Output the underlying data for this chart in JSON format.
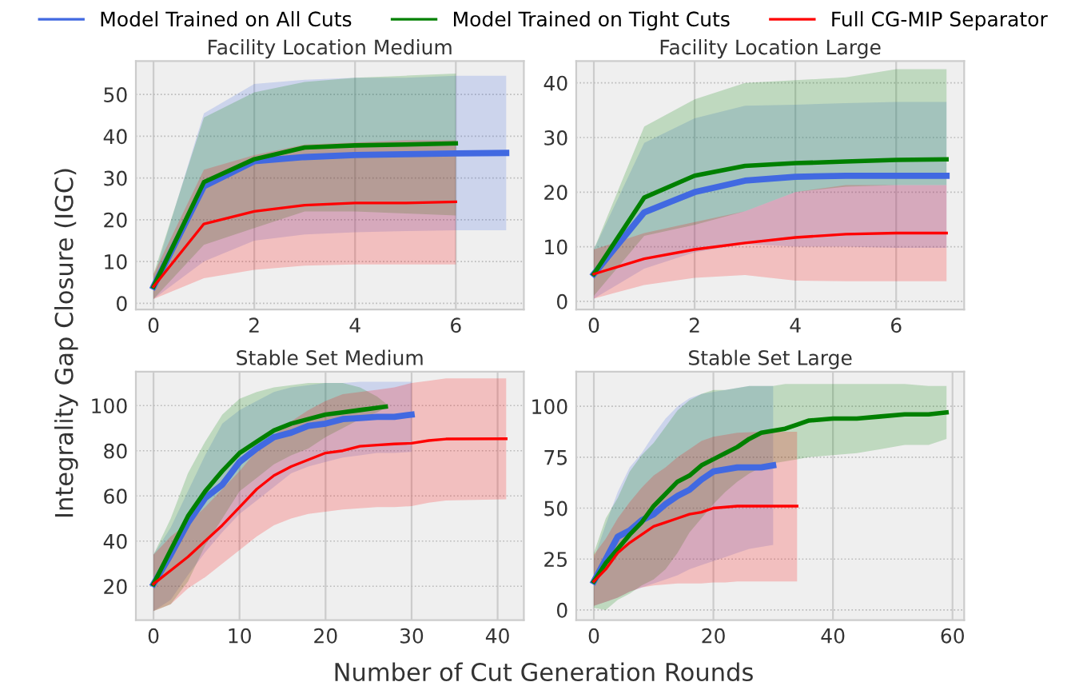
{
  "chart_data": [
    {
      "type": "line",
      "title": "Facility Location Medium",
      "ylabel": "Integrality Gap Closure (IGC)",
      "legend": "top",
      "grid": true,
      "xlim": [
        -0.35,
        7.35
      ],
      "xticks": [
        0,
        2,
        4,
        6
      ],
      "ylim": [
        -1.5,
        58
      ],
      "yticks": [
        0,
        10,
        20,
        30,
        40,
        50
      ],
      "series": [
        {
          "name": "Model Trained on All Cuts",
          "color": "#4169e1",
          "x": [
            0,
            1,
            2,
            3,
            4,
            5,
            6,
            7
          ],
          "values": [
            4,
            28,
            34,
            35,
            35.5,
            35.7,
            35.9,
            36
          ],
          "lower": [
            1,
            10,
            15,
            16.5,
            17,
            17.3,
            17.5,
            17.5
          ],
          "upper": [
            6,
            45.5,
            52.5,
            53.5,
            54,
            54,
            54.5,
            54.5
          ]
        },
        {
          "name": "Model Trained on Tight Cuts",
          "color": "#008000",
          "x": [
            0,
            1,
            2,
            3,
            4,
            5,
            6
          ],
          "values": [
            4,
            29,
            34.5,
            37.3,
            37.8,
            38,
            38.3
          ],
          "lower": [
            1,
            14,
            18,
            22,
            22,
            21.5,
            21
          ],
          "upper": [
            7,
            44.5,
            50.5,
            53,
            54,
            54.5,
            55
          ]
        },
        {
          "name": "Full CG-MIP Separator",
          "color": "#ff0000",
          "x": [
            0,
            1,
            2,
            3,
            4,
            5,
            6
          ],
          "values": [
            4,
            19,
            22,
            23.5,
            24,
            24,
            24.3
          ],
          "lower": [
            1,
            6,
            8,
            9,
            9.3,
            9.3,
            9.3
          ],
          "upper": [
            7,
            32,
            35.5,
            38,
            38.5,
            39,
            39
          ]
        }
      ]
    },
    {
      "type": "line",
      "title": "Facility Location Large",
      "grid": true,
      "xlim": [
        -0.35,
        7.35
      ],
      "xticks": [
        0,
        2,
        4,
        6
      ],
      "ylim": [
        -1.5,
        44
      ],
      "yticks": [
        0,
        10,
        20,
        30,
        40
      ],
      "series": [
        {
          "name": "Model Trained on All Cuts",
          "color": "#4169e1",
          "x": [
            0,
            1,
            2,
            3,
            4,
            5,
            6,
            7
          ],
          "values": [
            5,
            16.3,
            20,
            22.1,
            22.8,
            23,
            23,
            23
          ],
          "lower": [
            0.5,
            6,
            9,
            10.5,
            10,
            10,
            9.8,
            9.8
          ],
          "upper": [
            9.5,
            29,
            33.5,
            35.8,
            36,
            36.3,
            36.5,
            36.5
          ]
        },
        {
          "name": "Model Trained on Tight Cuts",
          "color": "#008000",
          "x": [
            0,
            1,
            2,
            3,
            4,
            5,
            6,
            7
          ],
          "values": [
            5,
            19,
            23,
            24.8,
            25.3,
            25.6,
            25.9,
            26
          ],
          "lower": [
            1,
            12,
            14,
            16.5,
            20,
            21,
            21.3,
            21.3
          ],
          "upper": [
            9.5,
            32,
            37,
            40,
            40.5,
            41,
            42.5,
            42.5
          ]
        },
        {
          "name": "Full CG-MIP Separator",
          "color": "#ff0000",
          "x": [
            0,
            1,
            2,
            3,
            4,
            5,
            6,
            7
          ],
          "values": [
            5,
            7.8,
            9.5,
            10.7,
            11.7,
            12.3,
            12.5,
            12.5
          ],
          "lower": [
            0.5,
            3,
            4.3,
            4.8,
            3.8,
            3.7,
            3.7,
            3.7
          ],
          "upper": [
            9.5,
            12.5,
            14.5,
            16.5,
            20,
            21.3,
            21.3,
            21.3
          ]
        }
      ]
    },
    {
      "type": "line",
      "title": "Stable Set Medium",
      "xlabel": "Number of Cut Generation Rounds",
      "grid": true,
      "xlim": [
        -2.05,
        43.05
      ],
      "xticks": [
        0,
        10,
        20,
        30,
        40
      ],
      "ylim": [
        5,
        115
      ],
      "yticks": [
        20,
        40,
        60,
        80,
        100
      ],
      "series": [
        {
          "name": "Model Trained on All Cuts",
          "color": "#4169e1",
          "x": [
            0,
            2,
            4,
            6,
            8,
            10,
            12,
            14,
            16,
            18,
            20,
            22,
            24,
            26,
            28,
            30
          ],
          "values": [
            21,
            34,
            48,
            59,
            65,
            75,
            81,
            86,
            88,
            91,
            92,
            94,
            94.5,
            95,
            95,
            96
          ],
          "lower": [
            9,
            14,
            25,
            35,
            44,
            52,
            58,
            64,
            70,
            73,
            75,
            77,
            78,
            79,
            79,
            79.5
          ],
          "upper": [
            34,
            46,
            62,
            78,
            92,
            98,
            102,
            106,
            108,
            109,
            110,
            110,
            110.5,
            110.5,
            110.5,
            110.5
          ]
        },
        {
          "name": "Model Trained on Tight Cuts",
          "color": "#008000",
          "x": [
            0,
            2,
            4,
            6,
            8,
            10,
            12,
            14,
            16,
            18,
            20,
            22,
            24,
            26,
            27
          ],
          "values": [
            21,
            36,
            51,
            62,
            71,
            79,
            84,
            89,
            92,
            94,
            96,
            97,
            98,
            99,
            99.5
          ],
          "lower": [
            9,
            12,
            22,
            38,
            50,
            62,
            68,
            74,
            78,
            81,
            86,
            90,
            94,
            97,
            99
          ],
          "upper": [
            34,
            50,
            70,
            84,
            96,
            103,
            106,
            108,
            109,
            110,
            110,
            110,
            108,
            104,
            101
          ]
        },
        {
          "name": "Full CG-MIP Separator",
          "color": "#ff0000",
          "x": [
            0,
            2,
            4,
            6,
            8,
            10,
            12,
            14,
            16,
            18,
            20,
            22,
            24,
            26,
            28,
            30,
            32,
            34,
            41
          ],
          "values": [
            21,
            27,
            33,
            40,
            47,
            55,
            63,
            69,
            73,
            76,
            79,
            80,
            82,
            82.5,
            83,
            83.3,
            84.5,
            85.2,
            85.3
          ],
          "lower": [
            9,
            12,
            19,
            24,
            30,
            36,
            42,
            47,
            50,
            52,
            53,
            54,
            54.5,
            55,
            55,
            55.5,
            57,
            58,
            58.5
          ],
          "upper": [
            34,
            42,
            48,
            55,
            63,
            71,
            80,
            87,
            93,
            98,
            102,
            105,
            106,
            107,
            108,
            110,
            111,
            112,
            112
          ]
        }
      ]
    },
    {
      "type": "line",
      "title": "Stable Set Large",
      "grid": true,
      "xlim": [
        -2.95,
        61.95
      ],
      "xticks": [
        0,
        20,
        40,
        60
      ],
      "ylim": [
        -5,
        117
      ],
      "yticks": [
        0,
        25,
        50,
        75,
        100
      ],
      "series": [
        {
          "name": "Model Trained on All Cuts",
          "color": "#4169e1",
          "x": [
            0,
            2,
            4,
            6,
            8,
            10,
            12,
            14,
            16,
            18,
            20,
            22,
            24,
            26,
            28,
            30
          ],
          "values": [
            14,
            25,
            36,
            39,
            44,
            47,
            52,
            56,
            59,
            64,
            68,
            69,
            70,
            70,
            70,
            71
          ],
          "lower": [
            2,
            4,
            6,
            9,
            11,
            13,
            15,
            17,
            20,
            22,
            24,
            26,
            28,
            30,
            31,
            32
          ],
          "upper": [
            25,
            42,
            58,
            70,
            77,
            86,
            94,
            100,
            104,
            106,
            107,
            108,
            109,
            110,
            110,
            110
          ]
        },
        {
          "name": "Model Trained on Tight Cuts",
          "color": "#008000",
          "x": [
            0,
            2,
            4,
            6,
            8,
            10,
            12,
            14,
            16,
            18,
            20,
            22,
            24,
            26,
            28,
            30,
            32,
            34,
            36,
            40,
            44,
            48,
            52,
            56,
            59
          ],
          "values": [
            14,
            23,
            30,
            37,
            43,
            51,
            57,
            63,
            66,
            71,
            74,
            77,
            80,
            84,
            87,
            88,
            89,
            91,
            93,
            94,
            94,
            95,
            96,
            96,
            97
          ],
          "lower": [
            1,
            0,
            5,
            8,
            12,
            15,
            20,
            28,
            38,
            45,
            52,
            58,
            63,
            67,
            70,
            72,
            73,
            74,
            75,
            76,
            77,
            79,
            81,
            81,
            84
          ],
          "upper": [
            28,
            45,
            55,
            68,
            76,
            82,
            90,
            98,
            103,
            106,
            108,
            108,
            109,
            110,
            110,
            110,
            111,
            111,
            111,
            111,
            111,
            111,
            111,
            110,
            110
          ]
        },
        {
          "name": "Full CG-MIP Separator",
          "color": "#ff0000",
          "x": [
            0,
            2,
            4,
            6,
            8,
            10,
            12,
            14,
            16,
            18,
            20,
            22,
            24,
            28,
            34
          ],
          "values": [
            14,
            20,
            28,
            33,
            37,
            41,
            43,
            45,
            47,
            48,
            50,
            50.5,
            51,
            51,
            51
          ],
          "lower": [
            2,
            4,
            6,
            9,
            11,
            12,
            12.5,
            13,
            13,
            13,
            13.5,
            13.5,
            14,
            14,
            14
          ],
          "upper": [
            27,
            35,
            45,
            53,
            60,
            66,
            70,
            75,
            79,
            83,
            85,
            86,
            87,
            87.5,
            87.5
          ]
        }
      ]
    }
  ]
}
